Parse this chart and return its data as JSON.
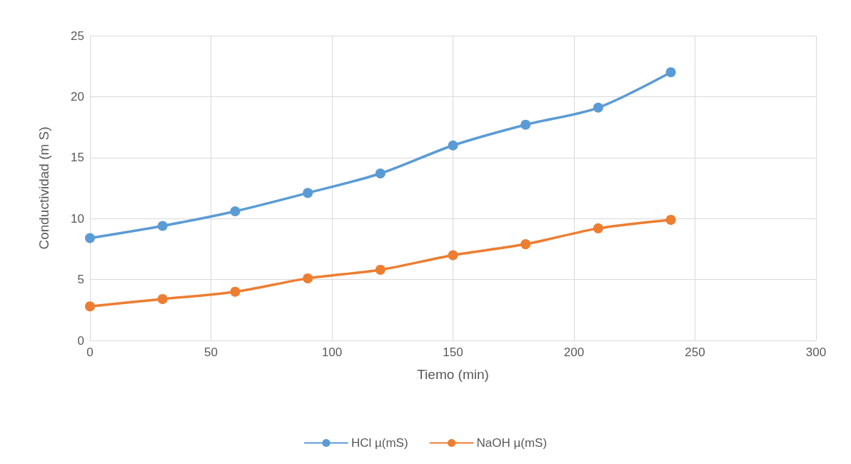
{
  "chart_data": {
    "type": "line",
    "xlabel": "Tiemo (min)",
    "ylabel": "Conductividad (m S)",
    "x": [
      0,
      30,
      60,
      90,
      120,
      150,
      180,
      210,
      240
    ],
    "series": [
      {
        "name": "HCl µ(mS)",
        "color": "#5b9bd5",
        "values": [
          8.4,
          9.4,
          10.6,
          12.1,
          13.7,
          16.0,
          17.7,
          19.1,
          22.0
        ]
      },
      {
        "name": "NaOH µ(mS)",
        "color": "#ed7d31",
        "values": [
          2.8,
          3.4,
          4.0,
          5.1,
          5.8,
          7.0,
          7.9,
          9.2,
          9.9
        ]
      }
    ],
    "xlim": [
      0,
      300
    ],
    "xticks": [
      0,
      50,
      100,
      150,
      200,
      250,
      300
    ],
    "ylim": [
      0,
      25
    ],
    "yticks": [
      0,
      5,
      10,
      15,
      20,
      25
    ],
    "grid": true,
    "legend": "bottom",
    "marker": "circle",
    "line_style": "solid"
  }
}
